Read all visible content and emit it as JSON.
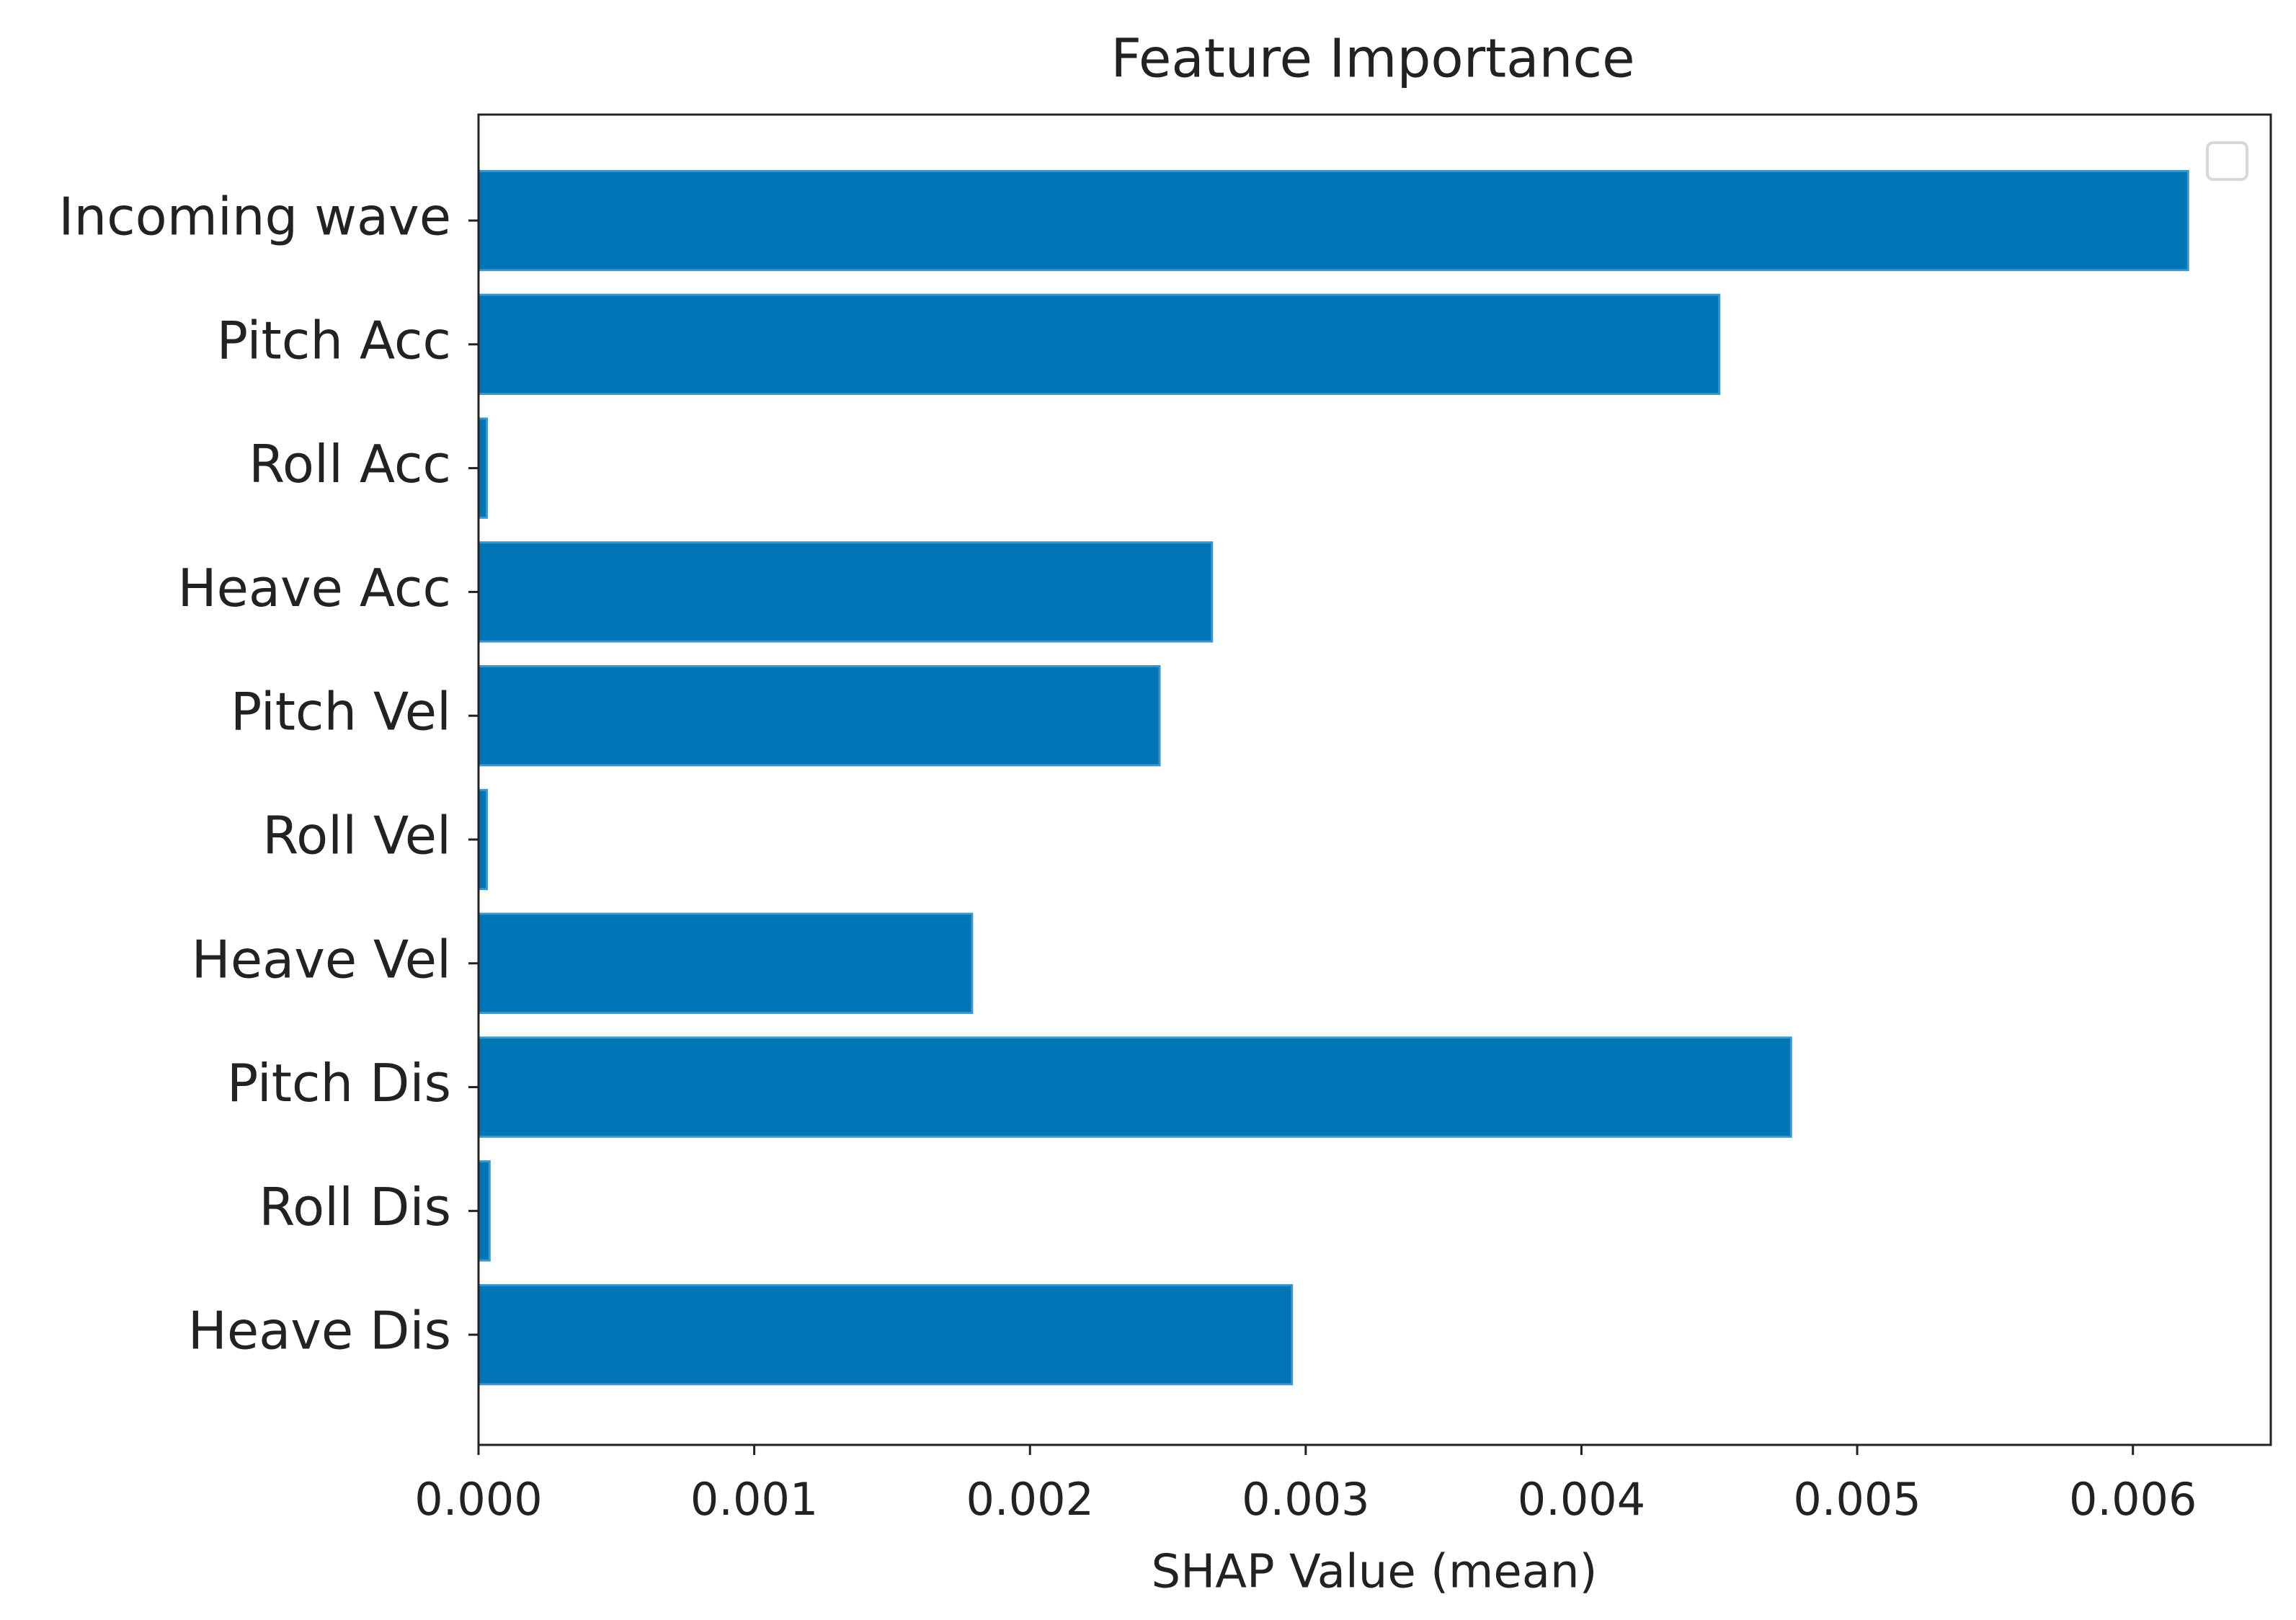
{
  "chart_data": {
    "type": "barh",
    "title": "Feature Importance",
    "x_label": "SHAP Value (mean)",
    "categories": [
      "Incoming wave",
      "Pitch Acc",
      "Roll Acc",
      "Heave Acc",
      "Pitch Vel",
      "Roll Vel",
      "Heave Vel",
      "Pitch Dis",
      "Roll Dis",
      "Heave Dis"
    ],
    "values": [
      0.0062,
      0.0045,
      3e-05,
      0.00266,
      0.00247,
      3e-05,
      0.00179,
      0.00476,
      4e-05,
      0.00295
    ],
    "color": "#0075b6",
    "xlim": [
      0,
      0.0065
    ],
    "xticks": [
      {
        "value": 0,
        "label": "0.000"
      },
      {
        "value": 0.001,
        "label": "0.001"
      },
      {
        "value": 0.002,
        "label": "0.002"
      },
      {
        "value": 0.003,
        "label": "0.003"
      },
      {
        "value": 0.004,
        "label": "0.004"
      },
      {
        "value": 0.005,
        "label": "0.005"
      },
      {
        "value": 0.006,
        "label": "0.006"
      }
    ],
    "grid": false
  }
}
